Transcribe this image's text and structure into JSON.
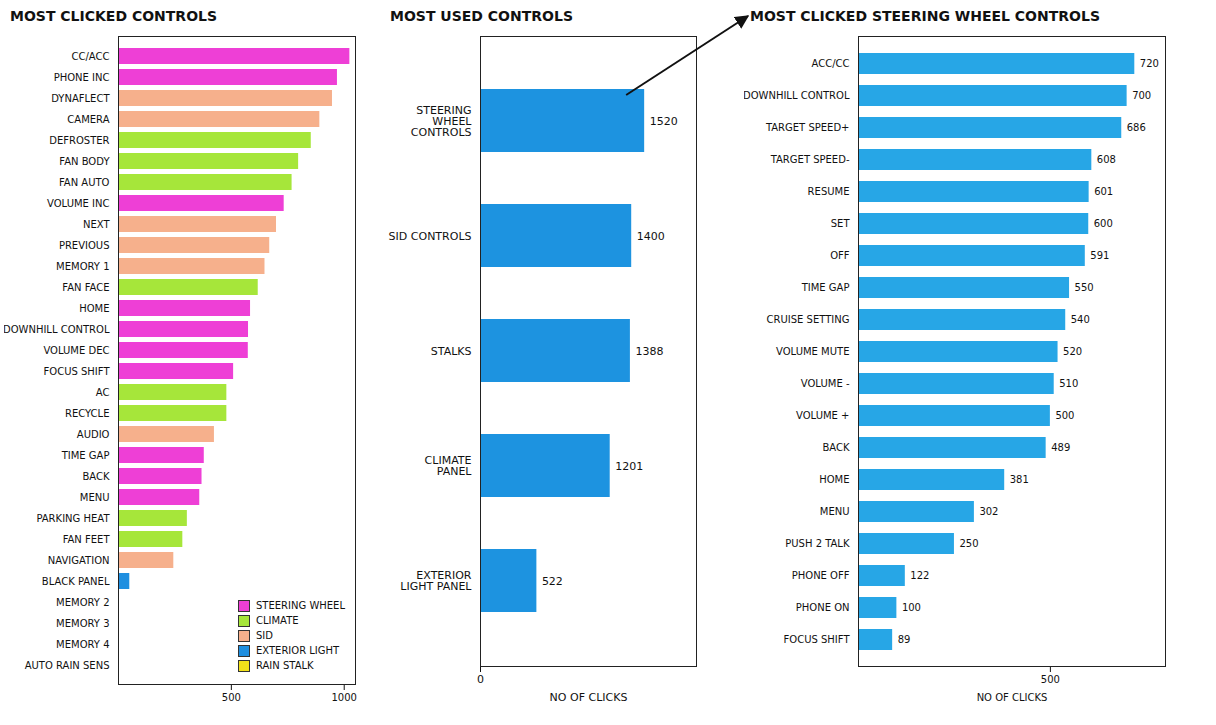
{
  "chart_data": [
    {
      "type": "bar",
      "title": "MOST CLICKED CONTROLS",
      "orientation": "horizontal",
      "categories": [
        "CC/ACC",
        "PHONE INC",
        "DYNAFLECT",
        "CAMERA",
        "DEFROSTER",
        "FAN BODY",
        "FAN AUTO",
        "VOLUME INC",
        "NEXT",
        "PREVIOUS",
        "MEMORY 1",
        "FAN FACE",
        "HOME",
        "DOWNHILL CONTROL",
        "VOLUME DEC",
        "FOCUS SHIFT",
        "AC",
        "RECYCLE",
        "AUDIO",
        "TIME GAP",
        "BACK",
        "MENU",
        "PARKING HEAT",
        "FAN FEET",
        "NAVIGATION",
        "BLACK PANEL",
        "MEMORY 2",
        "MEMORY 3",
        "MEMORY 4",
        "AUTO RAIN SENS"
      ],
      "series": [
        {
          "name": "STEERING WHEEL",
          "color": "#ee3fd6",
          "values": [
            1025,
            970,
            null,
            null,
            null,
            null,
            null,
            734,
            null,
            null,
            null,
            null,
            585,
            576,
            575,
            510,
            null,
            null,
            null,
            380,
            370,
            360,
            null,
            null,
            null,
            null,
            null,
            null,
            null,
            null
          ]
        },
        {
          "name": "CLIMATE",
          "color": "#a6e63a",
          "values": [
            null,
            null,
            null,
            null,
            854,
            798,
            769,
            null,
            null,
            null,
            null,
            619,
            null,
            null,
            null,
            null,
            480,
            480,
            null,
            null,
            null,
            null,
            305,
            285,
            null,
            null,
            null,
            null,
            null,
            null
          ]
        },
        {
          "name": "SID",
          "color": "#f6b08c",
          "values": [
            null,
            null,
            948,
            892,
            null,
            null,
            null,
            null,
            700,
            670,
            649,
            null,
            null,
            null,
            null,
            null,
            null,
            null,
            425,
            null,
            null,
            null,
            null,
            null,
            245,
            null,
            0,
            0,
            0,
            null
          ]
        },
        {
          "name": "EXTERIOR LIGHT",
          "color": "#1f8fe0",
          "values": [
            null,
            null,
            null,
            null,
            null,
            null,
            null,
            null,
            null,
            null,
            null,
            null,
            null,
            null,
            null,
            null,
            null,
            null,
            null,
            null,
            null,
            null,
            null,
            null,
            null,
            50,
            null,
            null,
            null,
            null
          ]
        },
        {
          "name": "RAIN STALK",
          "color": "#f2e21a",
          "values": [
            null,
            null,
            null,
            null,
            null,
            null,
            null,
            null,
            null,
            null,
            null,
            null,
            null,
            null,
            null,
            null,
            null,
            null,
            null,
            null,
            null,
            null,
            null,
            null,
            null,
            null,
            null,
            null,
            null,
            0
          ]
        }
      ],
      "xlim": [
        0,
        1050
      ],
      "xticks": [
        500,
        1000
      ],
      "legend": "bottom-right"
    },
    {
      "type": "bar",
      "title": "MOST USED CONTROLS",
      "orientation": "horizontal",
      "categories": [
        "STEERING WHEEL CONTROLS",
        "SID CONTROLS",
        "STALKS",
        "CLIMATE PANEL",
        "EXTERIOR LIGHT PANEL"
      ],
      "values": [
        1520,
        1400,
        1388,
        1201,
        522
      ],
      "color": "#1d93e0",
      "data_labels": true,
      "xlim": [
        0,
        2000
      ],
      "xticks": [
        0
      ],
      "xlabel": "NO OF CLICKS"
    },
    {
      "type": "bar",
      "title": "MOST CLICKED STEERING WHEEL CONTROLS",
      "orientation": "horizontal",
      "categories": [
        "ACC/CC",
        "DOWNHILL CONTROL",
        "TARGET SPEED+",
        "TARGET SPEED-",
        "RESUME",
        "SET",
        "OFF",
        "TIME GAP",
        "CRUISE SETTING",
        "VOLUME MUTE",
        "VOLUME -",
        "VOLUME +",
        "BACK",
        "HOME",
        "MENU",
        "PUSH 2 TALK",
        "PHONE OFF",
        "PHONE ON",
        "FOCUS SHIFT"
      ],
      "values": [
        720,
        700,
        686,
        608,
        601,
        600,
        591,
        550,
        540,
        520,
        510,
        500,
        489,
        381,
        302,
        250,
        122,
        100,
        89
      ],
      "color": "#27a6e6",
      "data_labels": true,
      "xlim": [
        0,
        800
      ],
      "xticks": [
        500
      ],
      "xlabel": "NO OF CLICKS"
    }
  ]
}
